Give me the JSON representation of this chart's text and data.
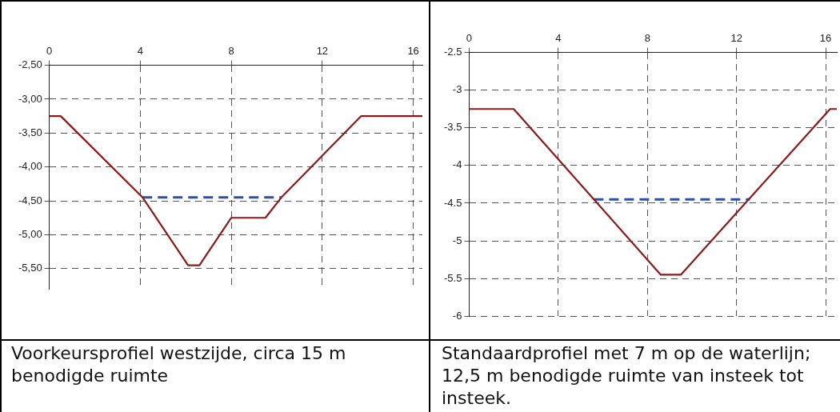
{
  "chart_data": [
    {
      "type": "line",
      "xlim": [
        0,
        16.4
      ],
      "xticks": [
        0,
        4,
        8,
        12,
        16
      ],
      "ylim": [
        -5.8,
        -2.5
      ],
      "yticks": [
        {
          "value": -2.5,
          "label": "-2,50"
        },
        {
          "value": -3,
          "label": "-3,00"
        },
        {
          "value": -3.5,
          "label": "-3,50"
        },
        {
          "value": -4,
          "label": "-4,00"
        },
        {
          "value": -4.5,
          "label": "-4,50"
        },
        {
          "value": -5,
          "label": "-5,00"
        },
        {
          "value": -5.5,
          "label": "-5,50"
        }
      ],
      "grid": true,
      "legend": false,
      "marker": "none",
      "series": [
        {
          "color": "#8b1a1a",
          "line_style": "solid",
          "x": [
            0,
            0.5,
            4.1,
            6.1,
            6.6,
            8,
            9.5,
            10.2,
            13.7,
            16.4
          ],
          "values": [
            -3.25,
            -3.25,
            -4.45,
            -5.45,
            -5.45,
            -4.75,
            -4.75,
            -4.45,
            -3.25,
            -3.25
          ]
        },
        {
          "color": "#2e4fa8",
          "line_style": "dashed",
          "x": [
            4.1,
            10.2
          ],
          "values": [
            -4.45,
            -4.45
          ]
        }
      ],
      "annotations": [
        "Voorkeursprofiel westzijde, circa 15 m benodigde ruimte"
      ]
    },
    {
      "type": "line",
      "xlim": [
        0,
        16.5
      ],
      "xticks": [
        0,
        4,
        8,
        12,
        16
      ],
      "ylim": [
        -6,
        -2.5
      ],
      "yticks": [
        -2.5,
        -3,
        -3.5,
        -4,
        -4.5,
        -5,
        -5.5,
        -6
      ],
      "grid": true,
      "legend": false,
      "marker": "none",
      "series": [
        {
          "color": "#8b1a1a",
          "line_style": "solid",
          "x": [
            0,
            2,
            8.6,
            9.5,
            16.2,
            16.5
          ],
          "values": [
            -3.25,
            -3.25,
            -5.45,
            -5.45,
            -3.25,
            -3.25
          ]
        },
        {
          "color": "#2e4fa8",
          "line_style": "dashed",
          "x": [
            5.6,
            12.6
          ],
          "values": [
            -4.45,
            -4.45
          ]
        }
      ],
      "annotations": [
        "Standaardprofiel met 7 m op de waterlijn; 12,5 m benodigde ruimte van insteek tot insteek."
      ]
    }
  ]
}
